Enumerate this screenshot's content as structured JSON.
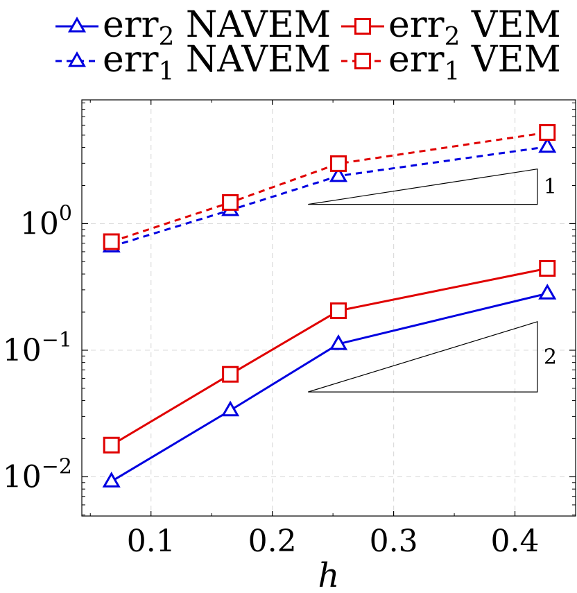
{
  "chart_data": {
    "type": "line",
    "title": "",
    "xlabel": "h",
    "ylabel": "",
    "x_scale": "linear",
    "y_scale": "log",
    "xlim": [
      0.043,
      0.45
    ],
    "ylim": [
      0.0049,
      9.5
    ],
    "grid": true,
    "legend_placement": "top",
    "x_ticks": [
      {
        "value": 0.1,
        "label": "0.1"
      },
      {
        "value": 0.2,
        "label": "0.2"
      },
      {
        "value": 0.3,
        "label": "0.3"
      },
      {
        "value": 0.4,
        "label": "0.4"
      }
    ],
    "y_ticks": [
      {
        "value": 1,
        "base": "10",
        "exp": "0"
      },
      {
        "value": 0.1,
        "base": "10",
        "exp": "−1"
      },
      {
        "value": 0.01,
        "base": "10",
        "exp": "−2"
      }
    ],
    "x": [
      0.0674,
      0.1654,
      0.2545,
      0.4267
    ],
    "series": [
      {
        "name": "err",
        "subscript": "2",
        "suffix": " NAVEM",
        "color": "#0000e0",
        "dash": "solid",
        "marker": "triangle",
        "values": [
          0.0092,
          0.0335,
          0.112,
          0.281
        ]
      },
      {
        "name": "err",
        "subscript": "1",
        "suffix": " NAVEM",
        "color": "#0000e0",
        "dash": "dashed",
        "marker": "triangle",
        "values": [
          0.66,
          1.28,
          2.38,
          4.05
        ]
      },
      {
        "name": "err",
        "subscript": "2",
        "suffix": " VEM",
        "color": "#e00000",
        "dash": "solid",
        "marker": "square",
        "values": [
          0.0178,
          0.0645,
          0.205,
          0.443
        ]
      },
      {
        "name": "err",
        "subscript": "1",
        "suffix": " VEM",
        "color": "#e00000",
        "dash": "dashed",
        "marker": "square",
        "values": [
          0.72,
          1.47,
          2.98,
          5.25
        ]
      }
    ],
    "slope_triangles": [
      {
        "label": "1",
        "x_left": 0.2295,
        "x_right": 0.4185,
        "y_bottom": 1.42,
        "y_top": 2.7
      },
      {
        "label": "2",
        "x_left": 0.2295,
        "x_right": 0.4185,
        "y_bottom": 0.0468,
        "y_top": 0.168
      }
    ]
  }
}
